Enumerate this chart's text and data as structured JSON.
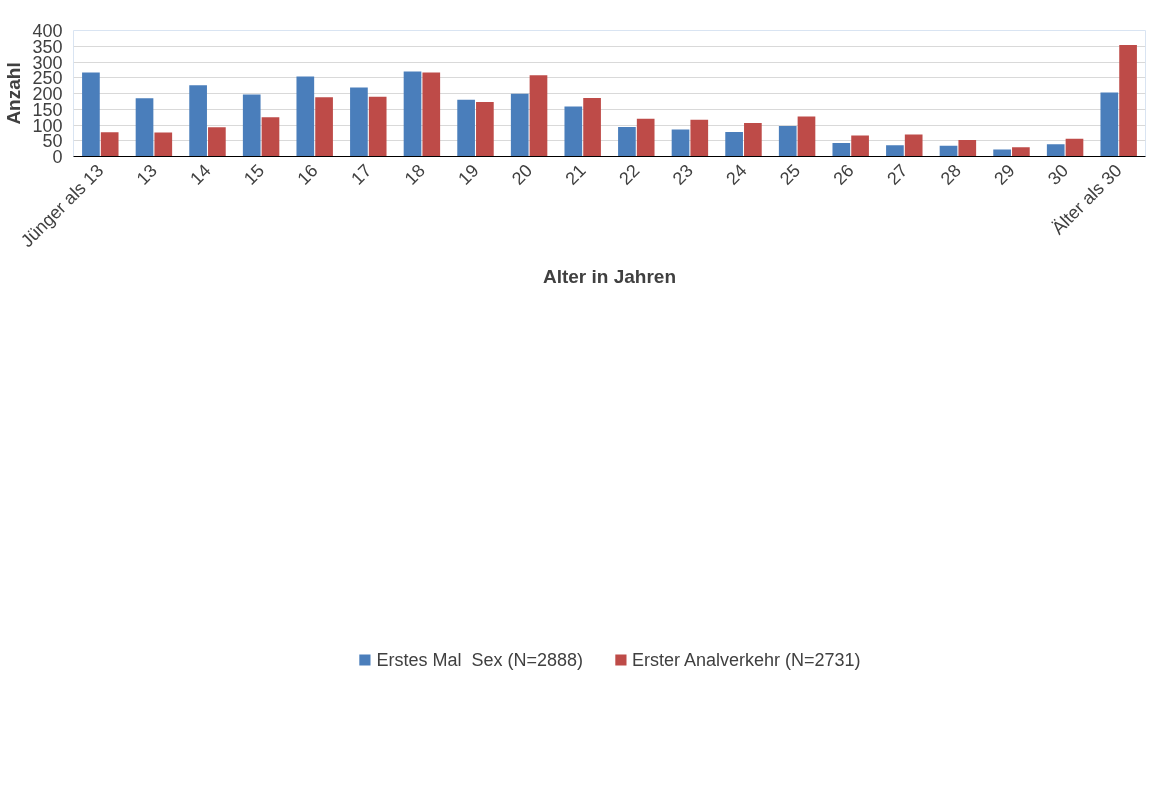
{
  "chart_data": {
    "type": "bar",
    "xlabel": "Alter in Jahren",
    "ylabel": "Anzahl",
    "categories": [
      "Jünger als 13",
      "13",
      "14",
      "15",
      "16",
      "17",
      "18",
      "19",
      "20",
      "21",
      "22",
      "23",
      "24",
      "25",
      "26",
      "27",
      "28",
      "29",
      "30",
      "Älter als 30"
    ],
    "series": [
      {
        "name": "Erstes Mal  Sex (N=2888)",
        "color": "#4a7ebb",
        "values": [
          267,
          185,
          226,
          197,
          254,
          219,
          270,
          180,
          199,
          159,
          94,
          86,
          78,
          97,
          43,
          36,
          34,
          22,
          39,
          203
        ]
      },
      {
        "name": "Erster Analverkehr (N=2731)",
        "color": "#be4b48",
        "values": [
          77,
          76,
          93,
          125,
          188,
          190,
          267,
          173,
          258,
          186,
          120,
          117,
          106,
          127,
          67,
          70,
          52,
          29,
          56,
          354
        ]
      }
    ],
    "ylim": [
      0,
      400
    ],
    "yticks": [
      0,
      50,
      100,
      150,
      200,
      250,
      300,
      350,
      400
    ],
    "grid": "y",
    "legend": "bottom"
  }
}
